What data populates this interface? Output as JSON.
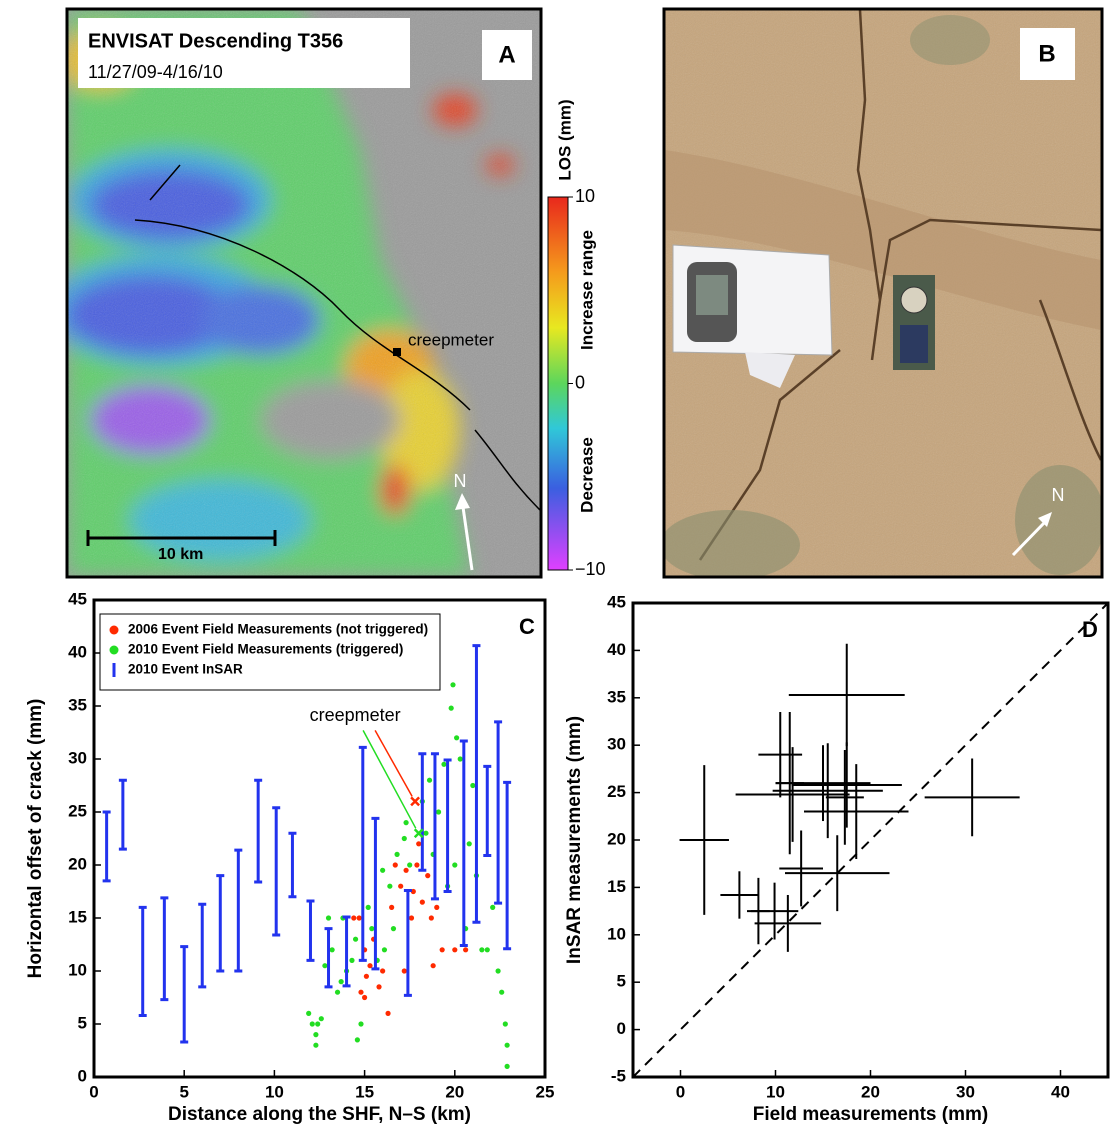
{
  "panel_a": {
    "letter": "A",
    "title": "ENVISAT Descending T356",
    "dates": "11/27/09-4/16/10",
    "annotation": "creepmeter",
    "north": "N",
    "scale_bar": "10 km",
    "colorbar": {
      "label": "LOS (mm)",
      "upper": "Increase range",
      "lower": "Decrease",
      "range": [
        -10,
        10
      ],
      "ticks": [
        10,
        0,
        {
          "value": -10,
          "label": "−10"
        }
      ]
    }
  },
  "panel_b": {
    "letter": "B",
    "north": "N"
  },
  "chart_data": [
    {
      "type": "scatter",
      "letter": "C",
      "xlabel": "Distance along the SHF, N–S (km)",
      "ylabel": "Horizontal offset of crack (mm)",
      "xlim": [
        0,
        25
      ],
      "xticks": [
        0,
        5,
        10,
        15,
        20,
        25
      ],
      "ylim": [
        0,
        45
      ],
      "yticks": [
        0,
        5,
        10,
        15,
        20,
        25,
        30,
        35,
        40,
        45
      ],
      "legend": "upper left",
      "series": [
        {
          "name": "2006 Event Field Measurements (not triggered)",
          "color": "#ff2a00",
          "x": [
            14.4,
            14.7,
            15,
            15.1,
            15.3,
            15,
            15.5,
            15.8,
            16,
            16.5,
            16.7,
            17,
            17.3,
            17.6,
            17.9,
            18,
            17.7,
            18.5,
            18.7,
            19,
            19.3,
            18.2,
            16.3,
            17.2,
            18.8,
            20,
            20.6,
            14.8
          ],
          "values": [
            15,
            15,
            12,
            9.5,
            10.5,
            7.5,
            13,
            8.5,
            10,
            16,
            20,
            18,
            19.5,
            15,
            20,
            22,
            17.5,
            19,
            15,
            16,
            12,
            16.5,
            6,
            10,
            10.5,
            12,
            12,
            8
          ]
        },
        {
          "name": "2010 Event Field Measurements (triggered)",
          "color": "#22dd22",
          "x": [
            11.9,
            12.1,
            12.3,
            12.4,
            12.6,
            12.3,
            12.8,
            13,
            13.2,
            13.5,
            13.7,
            13.8,
            14,
            14.3,
            14.5,
            14.6,
            14.8,
            15.2,
            15.4,
            15.7,
            16.1,
            16,
            16.4,
            16.6,
            16.8,
            17.2,
            17.3,
            17.5,
            18.2,
            18.4,
            18.6,
            18.8,
            19.1,
            19.4,
            19.6,
            19.8,
            19.9,
            20.1,
            20.3,
            20.6,
            20.8,
            21.2,
            21.5,
            21.8,
            22.1,
            22.4,
            22.6,
            22.8,
            22.9,
            22.9,
            21,
            20
          ],
          "values": [
            6,
            5,
            4,
            5,
            5.5,
            3,
            10.5,
            15,
            12,
            8,
            9,
            15,
            10,
            11,
            13,
            3.5,
            5,
            16,
            14,
            11,
            12,
            19.5,
            18,
            14,
            21,
            22.5,
            24,
            20,
            26,
            23,
            28,
            21,
            25,
            29.5,
            18,
            34.8,
            37,
            32,
            30,
            14,
            22,
            19,
            12,
            12,
            16,
            10,
            8,
            5,
            3,
            1,
            27.5,
            20
          ]
        },
        {
          "name": "2010 Event InSAR",
          "color": "#2233ee",
          "x": [
            0.7,
            1.6,
            2.7,
            3.9,
            5.0,
            6.0,
            7.0,
            8.0,
            9.1,
            10.1,
            11.0,
            12.0,
            13.0,
            14.0,
            14.9,
            15.6,
            17.4,
            18.2,
            18.9,
            19.6,
            20.5,
            21.2,
            21.8,
            22.4,
            22.9
          ],
          "low": [
            18.5,
            21.5,
            5.8,
            7.3,
            3.3,
            8.5,
            10,
            10,
            18.4,
            13.4,
            17,
            11,
            8.5,
            8.6,
            11,
            10.2,
            7.7,
            19.5,
            16.8,
            17.5,
            12.4,
            14.6,
            20.9,
            16.4,
            12.1
          ],
          "high": [
            25,
            28,
            16,
            16.9,
            12.3,
            16.3,
            19,
            21.4,
            28,
            25.4,
            23,
            16.6,
            14,
            15.1,
            31.1,
            24.4,
            17.6,
            30.5,
            30.5,
            29.9,
            31.7,
            40.7,
            29.3,
            33.5,
            27.8
          ]
        }
      ],
      "annotation": {
        "text": "creepmeter",
        "points": [
          {
            "x": 17.8,
            "y": 26,
            "color": "#ff2a00"
          },
          {
            "x": 18,
            "y": 23,
            "color": "#22dd22"
          }
        ]
      }
    },
    {
      "type": "scatter",
      "letter": "D",
      "xlabel": "Field measurements (mm)",
      "ylabel": "InSAR measurements (mm)",
      "xlim": [
        -5,
        45
      ],
      "xticks": [
        0,
        10,
        20,
        30,
        40
      ],
      "ylim": [
        -5,
        45
      ],
      "yticks": [
        -5,
        0,
        5,
        10,
        15,
        20,
        25,
        30,
        35,
        40,
        45
      ],
      "identity_line": true,
      "series": [
        {
          "color": "#000000",
          "x": [
            2.5,
            30.7,
            17.5,
            10.5,
            11.5,
            11.8,
            15.5,
            17.5,
            15,
            17.3,
            18.5,
            16.5,
            6.2,
            8.2,
            9.9,
            11.3,
            12.7
          ],
          "values": [
            20,
            24.5,
            35.3,
            29,
            26,
            24.8,
            25.2,
            25.8,
            26,
            24.5,
            23,
            16.5,
            14.2,
            12.5,
            12.5,
            11.2,
            17
          ],
          "xerr": [
            2.6,
            5,
            6.1,
            2.3,
            1.5,
            6,
            5.8,
            5.8,
            5,
            2,
            5.5,
            5.5,
            2,
            1.2,
            2.5,
            3.5,
            2.3
          ],
          "yerr": [
            7.9,
            4.1,
            5.4,
            4.5,
            7.5,
            5,
            5,
            4.5,
            4,
            5,
            5,
            4,
            2.5,
            3.5,
            3,
            3,
            4
          ]
        }
      ]
    }
  ]
}
